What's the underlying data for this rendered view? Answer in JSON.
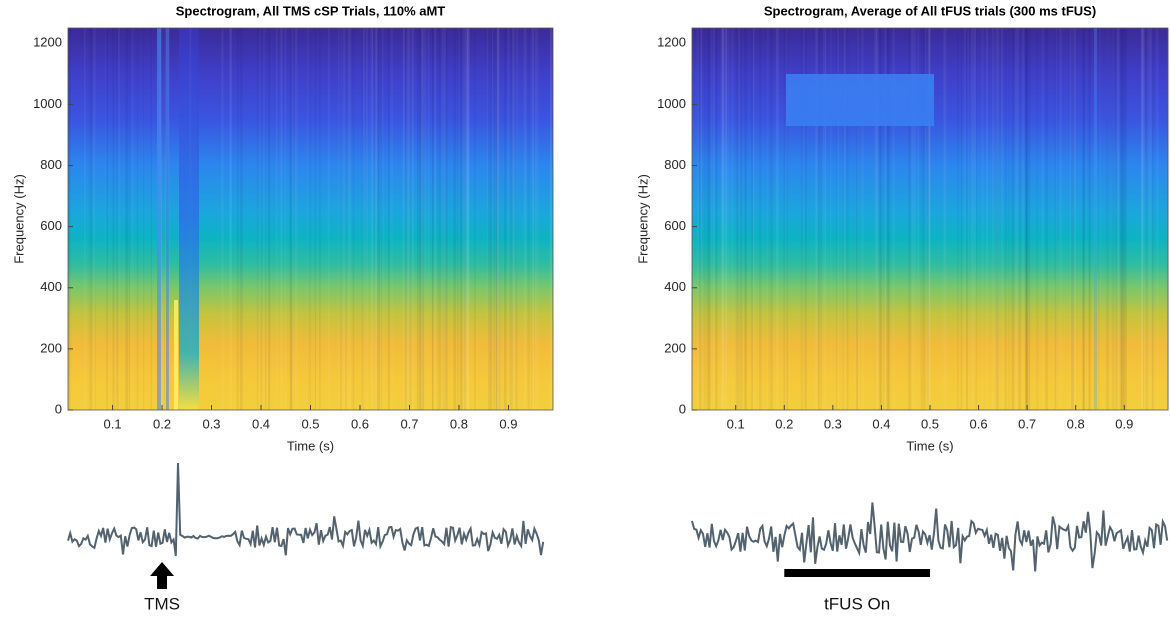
{
  "chart_data": [
    {
      "type": "spectrogram",
      "title": "Spectrogram, All TMS cSP Trials, 110% aMT",
      "xlabel": "Time (s)",
      "ylabel": "Frequency (Hz)",
      "xlim": [
        0.01,
        0.99
      ],
      "ylim": [
        0,
        1250
      ],
      "xticks": [
        0.1,
        0.2,
        0.3,
        0.4,
        0.5,
        0.6,
        0.7,
        0.8,
        0.9
      ],
      "yticks": [
        0,
        200,
        400,
        600,
        800,
        1000,
        1200
      ],
      "annotation": {
        "text": "TMS",
        "x": 0.2
      }
    },
    {
      "type": "spectrogram",
      "title": "Spectrogram, Average of All tFUS trials (300 ms tFUS)",
      "xlabel": "Time (s)",
      "ylabel": "Frequency (Hz)",
      "xlim": [
        0.01,
        0.99
      ],
      "ylim": [
        0,
        1250
      ],
      "xticks": [
        0.1,
        0.2,
        0.3,
        0.4,
        0.5,
        0.6,
        0.7,
        0.8,
        0.9
      ],
      "yticks": [
        0,
        200,
        400,
        600,
        800,
        1000,
        1200
      ],
      "annotation": {
        "text": "tFUS On",
        "xlim": [
          0.2,
          0.5
        ]
      }
    }
  ]
}
